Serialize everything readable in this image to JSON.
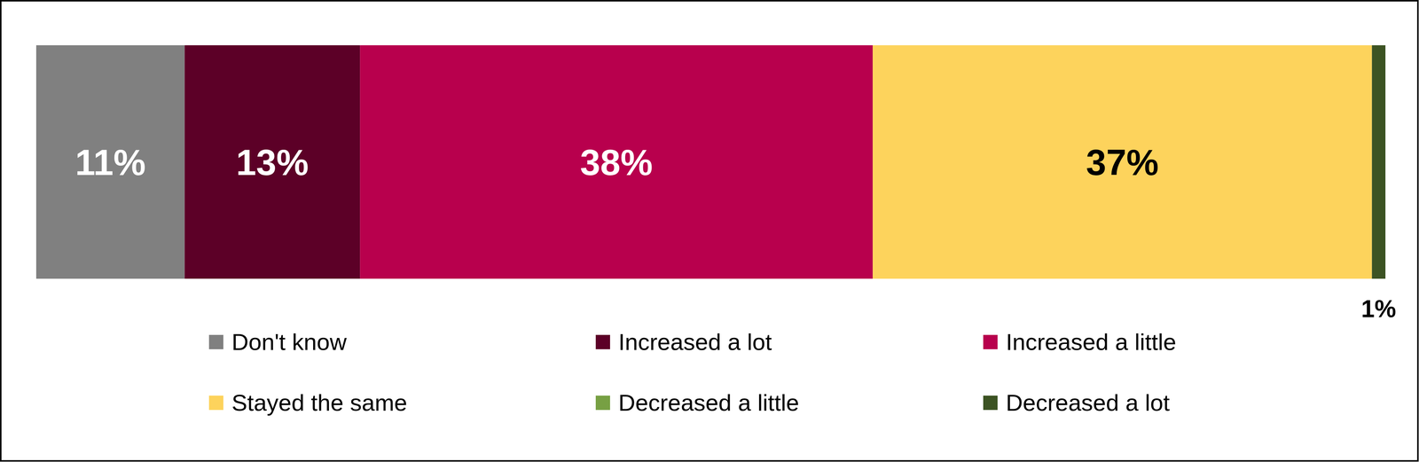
{
  "chart_data": {
    "type": "bar",
    "orientation": "horizontal",
    "stacked": true,
    "data_labels": true,
    "tick_labels": false,
    "legend": "bottom",
    "categories": [
      null
    ],
    "xlim": [
      0,
      100
    ],
    "series": [
      {
        "name": "Don't know",
        "color": "#808080",
        "values": [
          11
        ],
        "value_labels": [
          "11%"
        ]
      },
      {
        "name": "Increased a lot",
        "color": "#5c0027",
        "values": [
          13
        ],
        "value_labels": [
          "13%"
        ]
      },
      {
        "name": "Increased a little",
        "color": "#b8004d",
        "values": [
          38
        ],
        "value_labels": [
          "38%"
        ]
      },
      {
        "name": "Stayed the same",
        "color": "#fdd35c",
        "values": [
          37
        ],
        "value_labels": [
          "37%"
        ]
      },
      {
        "name": "Decreased a little",
        "color": "#77a043",
        "values": [
          0
        ]
      },
      {
        "name": "Decreased a lot",
        "color": "#3c5323",
        "values": [
          1
        ],
        "value_labels": [
          "1%"
        ]
      }
    ]
  }
}
